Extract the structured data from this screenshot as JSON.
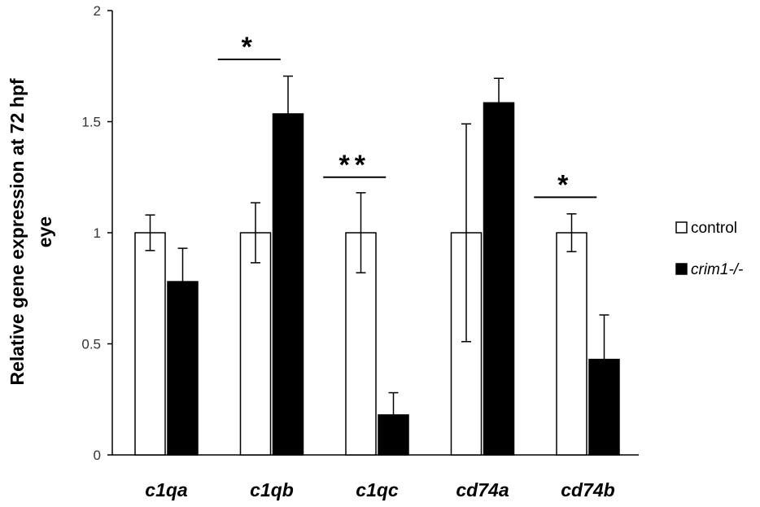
{
  "chart_data": {
    "type": "bar",
    "categories": [
      "c1qa",
      "c1qb",
      "c1qc",
      "cd74a",
      "cd74b"
    ],
    "series": [
      {
        "name": "control",
        "color": "#ffffff",
        "values": [
          1.0,
          1.0,
          1.0,
          1.0,
          1.0
        ],
        "errors": [
          0.08,
          0.135,
          0.18,
          0.49,
          0.085
        ]
      },
      {
        "name": "crim1-/-",
        "color": "#000000",
        "values": [
          0.78,
          1.535,
          0.18,
          1.585,
          0.43
        ],
        "errors": [
          0.15,
          0.17,
          0.1,
          0.11,
          0.2
        ]
      }
    ],
    "significance": [
      {
        "category": "c1qb",
        "label": "*",
        "y": 1.78
      },
      {
        "category": "c1qc",
        "label": "**",
        "y": 1.25
      },
      {
        "category": "cd74b",
        "label": "*",
        "y": 1.16
      }
    ],
    "ylabel_line1": "Relative gene expression at 72 hpf",
    "ylabel_line2": "eye",
    "xlabel": "",
    "ylim": [
      0,
      2
    ],
    "yticks": [
      "0",
      "0.5",
      "1",
      "1.5",
      "2"
    ],
    "grid": false,
    "legend_position": "right"
  }
}
